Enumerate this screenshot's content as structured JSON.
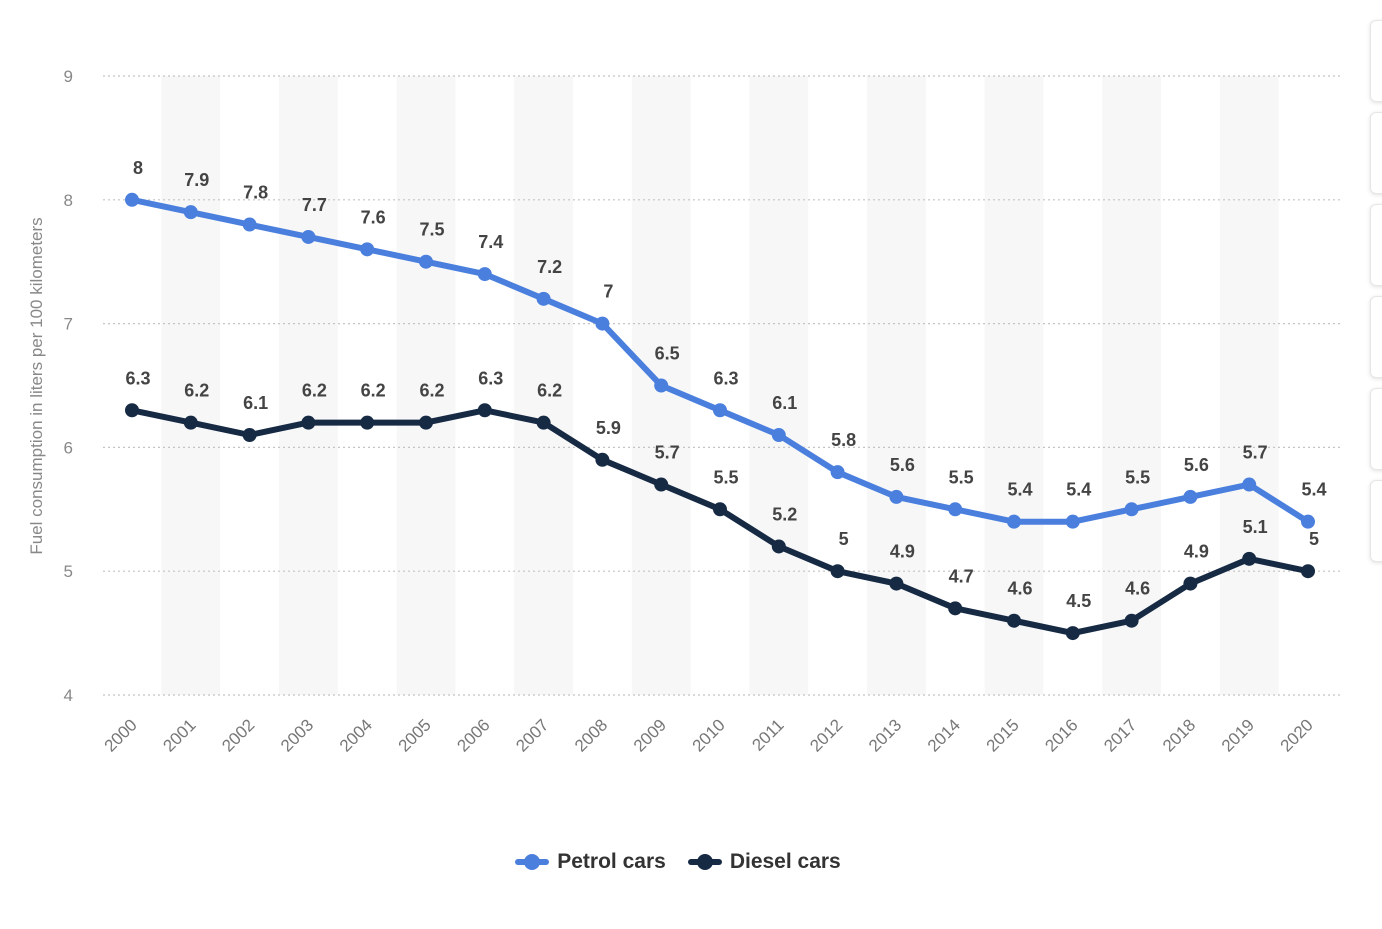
{
  "chart_data": {
    "type": "line",
    "ylabel": "Fuel consumption in liters per 100 kilometers",
    "xlabel": "",
    "ylim": [
      4,
      9
    ],
    "yticks": [
      "4",
      "5",
      "6",
      "7",
      "8",
      "9"
    ],
    "categories": [
      "2000",
      "2001",
      "2002",
      "2003",
      "2004",
      "2005",
      "2006",
      "2007",
      "2008",
      "2009",
      "2010",
      "2011",
      "2012",
      "2013",
      "2014",
      "2015",
      "2016",
      "2017",
      "2018",
      "2019",
      "2020"
    ],
    "grid": "horizontal dotted",
    "legend_position": "bottom-center",
    "series": [
      {
        "name": "Petrol cars",
        "color": "#4a7fde",
        "values": [
          8,
          7.9,
          7.8,
          7.7,
          7.6,
          7.5,
          7.4,
          7.2,
          7,
          6.5,
          6.3,
          6.1,
          5.8,
          5.6,
          5.5,
          5.4,
          5.4,
          5.5,
          5.6,
          5.7,
          5.4
        ],
        "labels": [
          "8",
          "7.9",
          "7.8",
          "7.7",
          "7.6",
          "7.5",
          "7.4",
          "7.2",
          "7",
          "6.5",
          "6.3",
          "6.1",
          "5.8",
          "5.6",
          "5.5",
          "5.4",
          "5.4",
          "5.5",
          "5.6",
          "5.7",
          "5.4"
        ]
      },
      {
        "name": "Diesel cars",
        "color": "#172a44",
        "values": [
          6.3,
          6.2,
          6.1,
          6.2,
          6.2,
          6.2,
          6.3,
          6.2,
          5.9,
          5.7,
          5.5,
          5.2,
          5,
          4.9,
          4.7,
          4.6,
          4.5,
          4.6,
          4.9,
          5.1,
          5
        ],
        "labels": [
          "6.3",
          "6.2",
          "6.1",
          "6.2",
          "6.2",
          "6.2",
          "6.3",
          "6.2",
          "5.9",
          "5.7",
          "5.5",
          "5.2",
          "5",
          "4.9",
          "4.7",
          "4.6",
          "4.5",
          "4.6",
          "4.9",
          "5.1",
          "5"
        ]
      }
    ]
  }
}
